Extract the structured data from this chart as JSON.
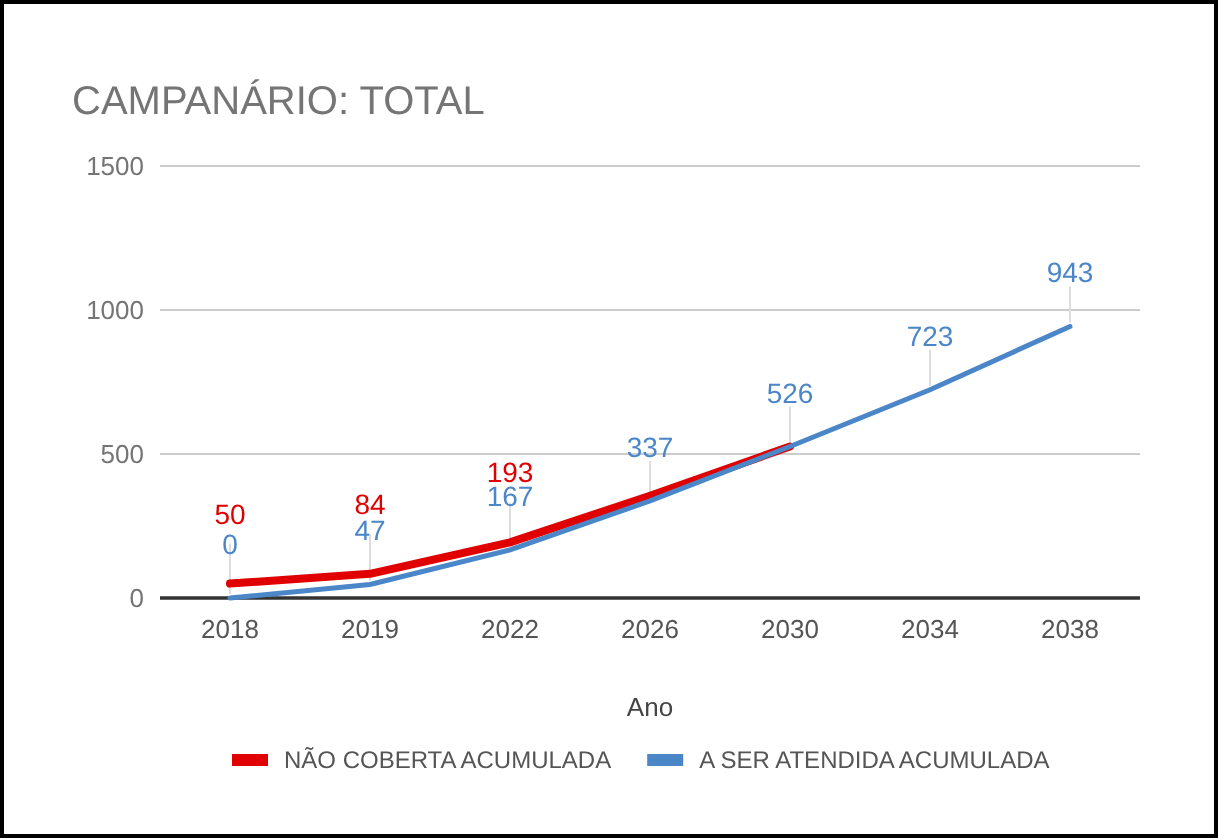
{
  "chart_data": {
    "type": "line",
    "title": "CAMPANÁRIO: TOTAL",
    "xlabel": "Ano",
    "categories": [
      "2018",
      "2019",
      "2022",
      "2026",
      "2030",
      "2034",
      "2038"
    ],
    "series": [
      {
        "name": "NÃO COBERTA ACUMULADA",
        "color": "#e00000",
        "values": [
          50,
          84,
          193,
          355,
          526,
          null,
          null
        ],
        "value_labels": [
          "50",
          "84",
          "193",
          null,
          null,
          null,
          null
        ]
      },
      {
        "name": "A SER ATENDIDA ACUMULADA",
        "color": "#4a86c8",
        "values": [
          0,
          47,
          167,
          337,
          526,
          723,
          943
        ],
        "value_labels": [
          "0",
          "47",
          "167",
          "337",
          "526",
          "723",
          "943"
        ]
      }
    ],
    "ylim": [
      0,
      1500
    ],
    "yticks": [
      0,
      500,
      1000,
      1500
    ],
    "grid": "y",
    "legend": "bottom",
    "marker": "none",
    "line_style": "solid"
  }
}
